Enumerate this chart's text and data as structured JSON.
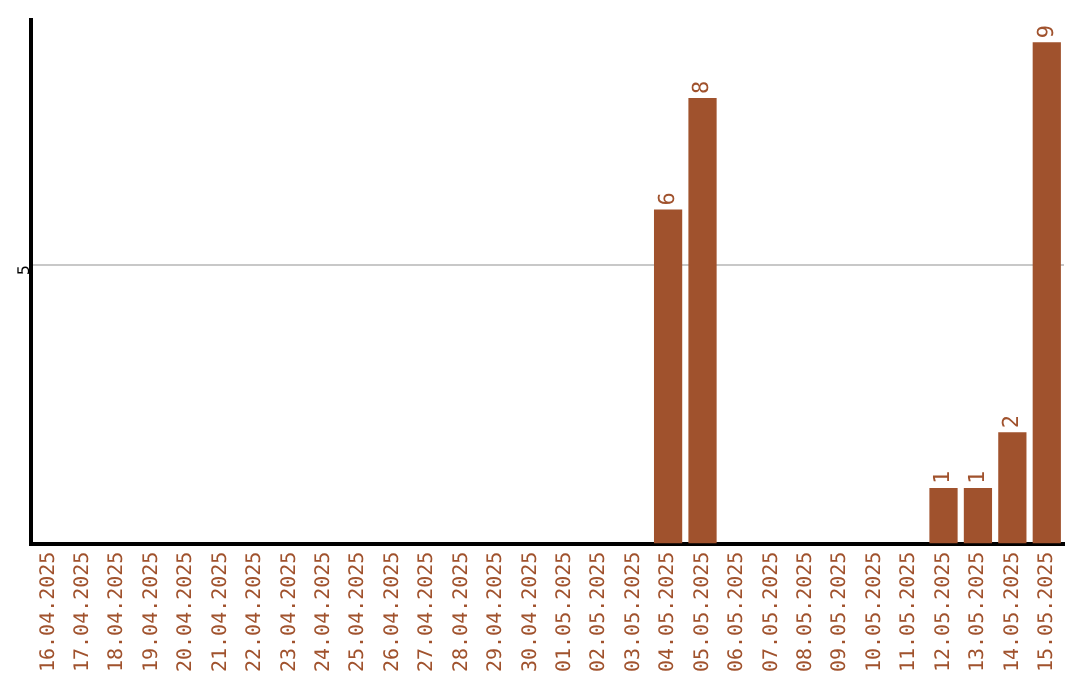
{
  "chart_data": {
    "type": "bar",
    "categories": [
      "16.04.2025",
      "17.04.2025",
      "18.04.2025",
      "19.04.2025",
      "20.04.2025",
      "21.04.2025",
      "22.04.2025",
      "23.04.2025",
      "24.04.2025",
      "25.04.2025",
      "26.04.2025",
      "27.04.2025",
      "28.04.2025",
      "29.04.2025",
      "30.04.2025",
      "01.05.2025",
      "02.05.2025",
      "03.05.2025",
      "04.05.2025",
      "05.05.2025",
      "06.05.2025",
      "07.05.2025",
      "08.05.2025",
      "09.05.2025",
      "10.05.2025",
      "11.05.2025",
      "12.05.2025",
      "13.05.2025",
      "14.05.2025",
      "15.05.2025"
    ],
    "values": [
      null,
      null,
      null,
      null,
      null,
      null,
      null,
      null,
      null,
      null,
      null,
      null,
      null,
      null,
      null,
      null,
      null,
      null,
      6,
      8,
      null,
      null,
      null,
      null,
      null,
      null,
      1,
      1,
      2,
      9
    ],
    "data_labels": true,
    "color": "#a0522d",
    "ylim": [
      0,
      9.4
    ],
    "yticks": [
      5
    ],
    "grid": "y",
    "legend": false
  }
}
